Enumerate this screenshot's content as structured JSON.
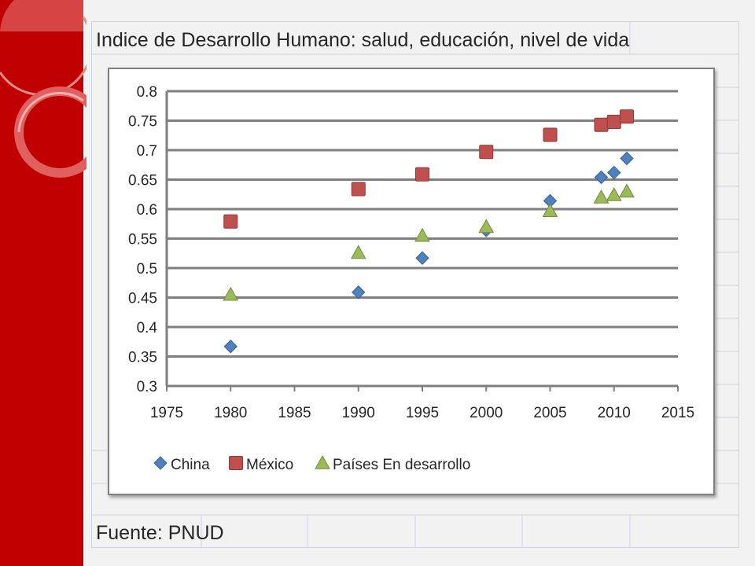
{
  "slide": {
    "title": "Indice de Desarrollo Humano: salud, educación, nivel de vida",
    "source": "Fuente: PNUD"
  },
  "colors": {
    "band": "#c00000",
    "china": "#4f81bd",
    "mexico": "#c0504d",
    "developing": "#9bbb59"
  },
  "chart_data": {
    "type": "scatter",
    "title": "",
    "xlabel": "",
    "ylabel": "",
    "xlim": [
      1975,
      2015
    ],
    "ylim": [
      0.3,
      0.8
    ],
    "x_ticks": [
      "1975",
      "1980",
      "1985",
      "1990",
      "1995",
      "2000",
      "2005",
      "2010",
      "2015"
    ],
    "y_ticks": [
      "0.3",
      "0.35",
      "0.4",
      "0.45",
      "0.5",
      "0.55",
      "0.6",
      "0.65",
      "0.7",
      "0.75",
      "0.8"
    ],
    "grid": "horizontal",
    "legend_position": "bottom",
    "series": [
      {
        "name": "China",
        "marker": "diamond",
        "x": [
          1980,
          1990,
          1995,
          2000,
          2005,
          2009,
          2010,
          2011
        ],
        "y": [
          0.367,
          0.459,
          0.517,
          0.564,
          0.614,
          0.654,
          0.662,
          0.686
        ]
      },
      {
        "name": "México",
        "marker": "square",
        "x": [
          1980,
          1990,
          1995,
          2000,
          2005,
          2009,
          2010,
          2011
        ],
        "y": [
          0.579,
          0.634,
          0.659,
          0.697,
          0.726,
          0.743,
          0.748,
          0.757
        ]
      },
      {
        "name": "Países En desarrollo",
        "marker": "triangle",
        "x": [
          1980,
          1990,
          1995,
          2000,
          2005,
          2009,
          2010,
          2011
        ],
        "y": [
          0.455,
          0.526,
          0.555,
          0.57,
          0.597,
          0.62,
          0.624,
          0.63
        ]
      }
    ]
  }
}
